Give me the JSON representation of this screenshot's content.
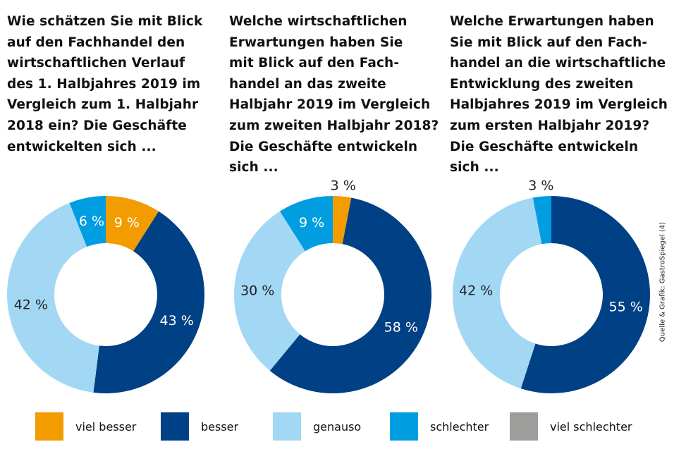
{
  "source": "Quelle & Grafik: GastroSpiegel (4)",
  "chart_data": [
    {
      "type": "pie",
      "variant": "donut",
      "title_lines": [
        "Wie schätzen Sie mit Blick",
        "auf den Fachhandel den",
        "wirtschaftlichen Verlauf",
        "des 1. Halbjahres 2019 im",
        "Vergleich zum 1. Halbjahr",
        "2018 ein? Die Geschäfte",
        "entwickelten sich ..."
      ],
      "categories": [
        "viel besser",
        "besser",
        "genauso",
        "schlechter",
        "viel schlechter"
      ],
      "values": [
        9,
        43,
        42,
        6,
        0
      ],
      "labels": [
        "9 %",
        "43 %",
        "42 %",
        "6 %",
        ""
      ]
    },
    {
      "type": "pie",
      "variant": "donut",
      "title_lines": [
        "Welche wirtschaftlichen",
        "Erwartungen haben Sie",
        "mit Blick auf den Fach-",
        "handel an das zweite",
        "Halbjahr 2019 im Vergleich",
        "zum zweiten Halbjahr 2018?",
        "Die Geschäfte entwickeln",
        "sich ..."
      ],
      "categories": [
        "viel besser",
        "besser",
        "genauso",
        "schlechter",
        "viel schlechter"
      ],
      "values": [
        3,
        58,
        30,
        9,
        0
      ],
      "labels": [
        "3 %",
        "58 %",
        "30 %",
        "9 %",
        ""
      ]
    },
    {
      "type": "pie",
      "variant": "donut",
      "title_lines": [
        "Welche Erwartungen haben",
        "Sie mit Blick auf den Fach-",
        "handel an die wirtschaftliche",
        "Entwicklung des zweiten",
        "Halbjahres 2019 im Vergleich",
        "zum ersten Halbjahr 2019?",
        "Die Geschäfte entwickeln",
        "sich ..."
      ],
      "categories": [
        "viel besser",
        "besser",
        "genauso",
        "schlechter",
        "viel schlechter"
      ],
      "values": [
        0,
        55,
        42,
        3,
        0
      ],
      "labels": [
        "",
        "55 %",
        "42 %",
        "3 %",
        ""
      ]
    }
  ],
  "legend": {
    "placement": "bottom",
    "items": [
      {
        "label": "viel besser",
        "color": "#f39c00"
      },
      {
        "label": "besser",
        "color": "#004085"
      },
      {
        "label": "genauso",
        "color": "#a3d8f5"
      },
      {
        "label": "schlechter",
        "color": "#009ee0"
      },
      {
        "label": "viel schlechter",
        "color": "#9d9d9c"
      }
    ]
  },
  "label_colors": [
    "#ffffff",
    "#ffffff",
    "#222222",
    "#ffffff",
    "#ffffff"
  ]
}
